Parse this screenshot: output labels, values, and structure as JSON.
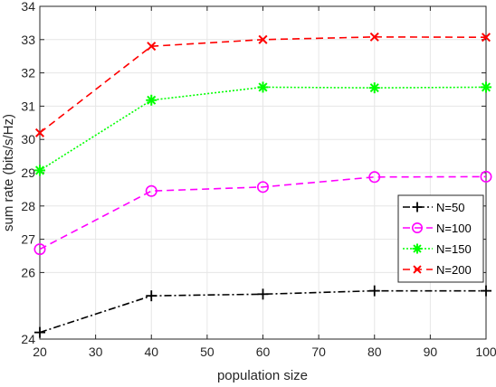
{
  "chart_data": {
    "type": "line",
    "title": "",
    "xlabel": "population size",
    "ylabel": "sum rate (bits/s/Hz)",
    "xlim": [
      20,
      100
    ],
    "ylim": [
      24,
      34
    ],
    "xticks": [
      "20",
      "30",
      "40",
      "50",
      "60",
      "70",
      "80",
      "90",
      "100"
    ],
    "yticks": [
      "24",
      "26",
      "27",
      "28",
      "29",
      "30",
      "31",
      "32",
      "33",
      "34"
    ],
    "grid": true,
    "legend_position": "right",
    "x": [
      20,
      40,
      60,
      80,
      100
    ],
    "series": [
      {
        "name": "N=50",
        "values": [
          24.2,
          25.3,
          25.35,
          25.45,
          25.45
        ],
        "color": "#000000",
        "marker": "plus",
        "dash": "8,3,2,3"
      },
      {
        "name": "N=100",
        "values": [
          26.7,
          28.45,
          28.57,
          28.87,
          28.88
        ],
        "color": "#ff00ff",
        "marker": "circle",
        "dash": "8,5"
      },
      {
        "name": "N=150",
        "values": [
          29.07,
          31.18,
          31.57,
          31.55,
          31.57
        ],
        "color": "#00ff00",
        "marker": "asterisk",
        "dash": "2,2"
      },
      {
        "name": "N=200",
        "values": [
          30.2,
          32.8,
          33.0,
          33.08,
          33.07
        ],
        "color": "#ff0000",
        "marker": "cross",
        "dash": "8,5"
      }
    ]
  }
}
